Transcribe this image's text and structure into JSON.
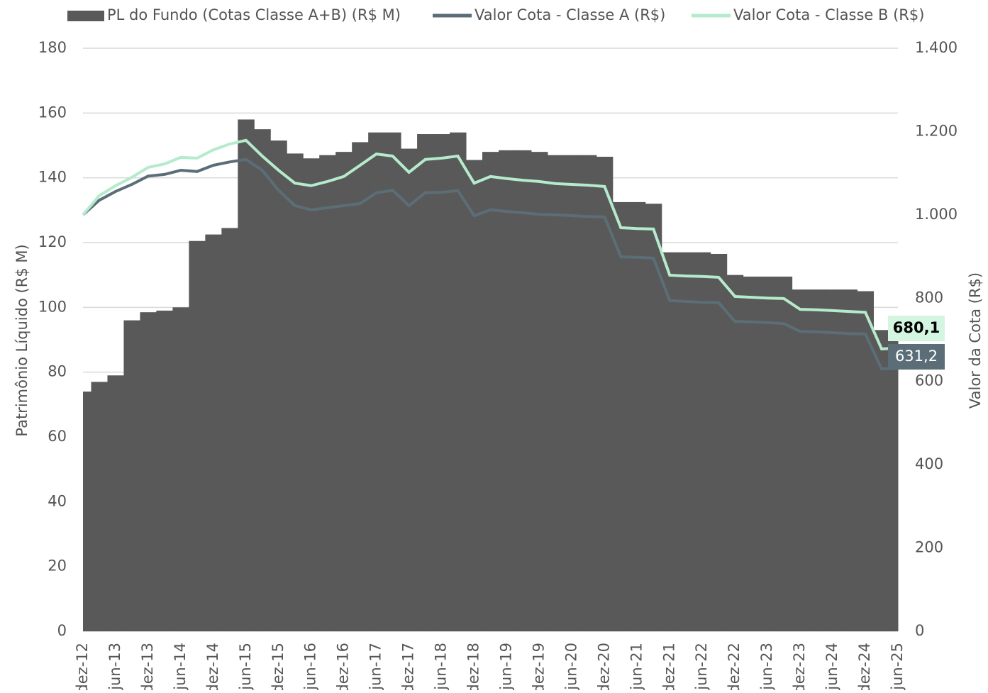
{
  "chart_data": {
    "type": "bar-line",
    "categories": [
      "dez-12",
      null,
      "jun-13",
      null,
      "dez-13",
      null,
      "jun-14",
      null,
      "dez-14",
      null,
      "jun-15",
      null,
      "dez-15",
      null,
      "jun-16",
      null,
      "dez-16",
      null,
      "jun-17",
      null,
      "dez-17",
      null,
      "jun-18",
      null,
      "dez-18",
      null,
      "jun-19",
      null,
      "dez-19",
      null,
      "jun-20",
      null,
      "dez-20",
      null,
      "jun-21",
      null,
      "dez-21",
      null,
      "jun-22",
      null,
      "dez-22",
      null,
      "jun-23",
      null,
      "dez-23",
      null,
      "jun-24",
      null,
      "dez-24",
      null,
      "jun-25"
    ],
    "series": [
      {
        "name": "PL do Fundo (Cotas Classe A+B) (R$ M)",
        "color": "#595959",
        "kind": "bar",
        "values": [
          74,
          77,
          79,
          96,
          98.5,
          99,
          100,
          120.5,
          122.5,
          124.5,
          158,
          155,
          151.5,
          147.5,
          146,
          147,
          148,
          151,
          154,
          154,
          149,
          153.5,
          153.5,
          154,
          145.5,
          148,
          148.5,
          148.5,
          148,
          147,
          147,
          147,
          146.5,
          132.5,
          132.5,
          132,
          117,
          117,
          117,
          116.5,
          110,
          109.5,
          109.5,
          109.5,
          105.5,
          105.5,
          105.5,
          105.5,
          105,
          93,
          92
        ]
      },
      {
        "name": "Valor Cota - Classe A (R$)",
        "color": "#5b6e78",
        "kind": "line",
        "axis": "y2",
        "values": [
          1000,
          1035,
          1056,
          1073,
          1093,
          1097,
          1107,
          1104,
          1119,
          1127,
          1133,
          1107,
          1059,
          1022,
          1012,
          1017,
          1022,
          1027,
          1053,
          1059,
          1022,
          1053,
          1054,
          1058,
          998,
          1012,
          1008,
          1005,
          1001,
          1000,
          998,
          996,
          995,
          899,
          898,
          896,
          794,
          792,
          790,
          789,
          744,
          743,
          741,
          739,
          720,
          719,
          717,
          715,
          714,
          630,
          631.2
        ],
        "value_labels": [
          null,
          null,
          null,
          null,
          null,
          null,
          null,
          null,
          null,
          null,
          null,
          null,
          null,
          null,
          null,
          null,
          null,
          null,
          null,
          null,
          null,
          null,
          null,
          null,
          null,
          null,
          null,
          null,
          null,
          null,
          null,
          null,
          null,
          null,
          null,
          null,
          null,
          null,
          null,
          null,
          null,
          null,
          null,
          null,
          null,
          null,
          null,
          null,
          null,
          null,
          "631,2"
        ]
      },
      {
        "name": "Valor Cota - Classe B (R$)",
        "color": "#b5ebcc",
        "kind": "line",
        "axis": "y2",
        "values": [
          1000,
          1046,
          1070,
          1090,
          1114,
          1122,
          1138,
          1136,
          1156,
          1170,
          1179,
          1141,
          1107,
          1076,
          1070,
          1080,
          1092,
          1119,
          1146,
          1141,
          1102,
          1133,
          1136,
          1141,
          1076,
          1092,
          1087,
          1083,
          1080,
          1075,
          1073,
          1071,
          1068,
          969,
          967,
          966,
          855,
          853,
          852,
          850,
          804,
          802,
          800,
          799,
          773,
          772,
          770,
          768,
          766,
          678,
          680.1
        ],
        "value_labels": [
          null,
          null,
          null,
          null,
          null,
          null,
          null,
          null,
          null,
          null,
          null,
          null,
          null,
          null,
          null,
          null,
          null,
          null,
          null,
          null,
          null,
          null,
          null,
          null,
          null,
          null,
          null,
          null,
          null,
          null,
          null,
          null,
          null,
          null,
          null,
          null,
          null,
          null,
          null,
          null,
          null,
          null,
          null,
          null,
          null,
          null,
          null,
          null,
          null,
          null,
          "680,1"
        ]
      }
    ],
    "ylabel": "Patrimônio Líquido (R$ M)",
    "y2label": "Valor da Cota (R$)",
    "ylim": [
      0,
      180
    ],
    "yticks": [
      0,
      20,
      40,
      60,
      80,
      100,
      120,
      140,
      160,
      180
    ],
    "y2lim": [
      0,
      1400
    ],
    "y2ticks": [
      0,
      200,
      400,
      600,
      800,
      {
        "value": 1000,
        "label": "1.000"
      },
      {
        "value": 1200,
        "label": "1.200"
      },
      {
        "value": 1400,
        "label": "1.400"
      }
    ],
    "grid": true,
    "legend": "top"
  }
}
